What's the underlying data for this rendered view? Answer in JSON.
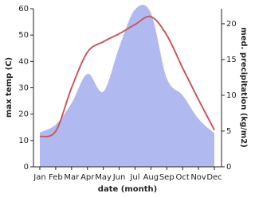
{
  "chart_data": {
    "type": "line-area-dual",
    "x_label": "date (month)",
    "y_label": "max temp (C)",
    "y2_label": "med. precipitation (kg/m2)",
    "categories": [
      "Jan",
      "Feb",
      "Mar",
      "Apr",
      "May",
      "Jun",
      "Jul",
      "Aug",
      "Sep",
      "Oct",
      "Nov",
      "Dec"
    ],
    "series": [
      {
        "name": "max temp",
        "kind": "line",
        "color": "#c85a5e",
        "values": [
          11.5,
          13.5,
          30,
          43.5,
          47.5,
          50.5,
          54,
          57,
          50,
          37.5,
          25.5,
          14
        ]
      },
      {
        "name": "med. precipitation",
        "kind": "area",
        "axis": "y2",
        "color": "#b1baf0",
        "values": [
          4.8,
          5.9,
          8.9,
          13,
          10.5,
          16.7,
          22,
          21.5,
          12.4,
          10,
          6.7,
          4.7
        ]
      }
    ],
    "ylim": [
      0,
      60
    ],
    "yticks": [
      0,
      10,
      20,
      30,
      40,
      50,
      60
    ],
    "y2lim": [
      0,
      22.1
    ],
    "y2ticks": [
      0,
      5,
      10,
      15,
      20
    ]
  }
}
